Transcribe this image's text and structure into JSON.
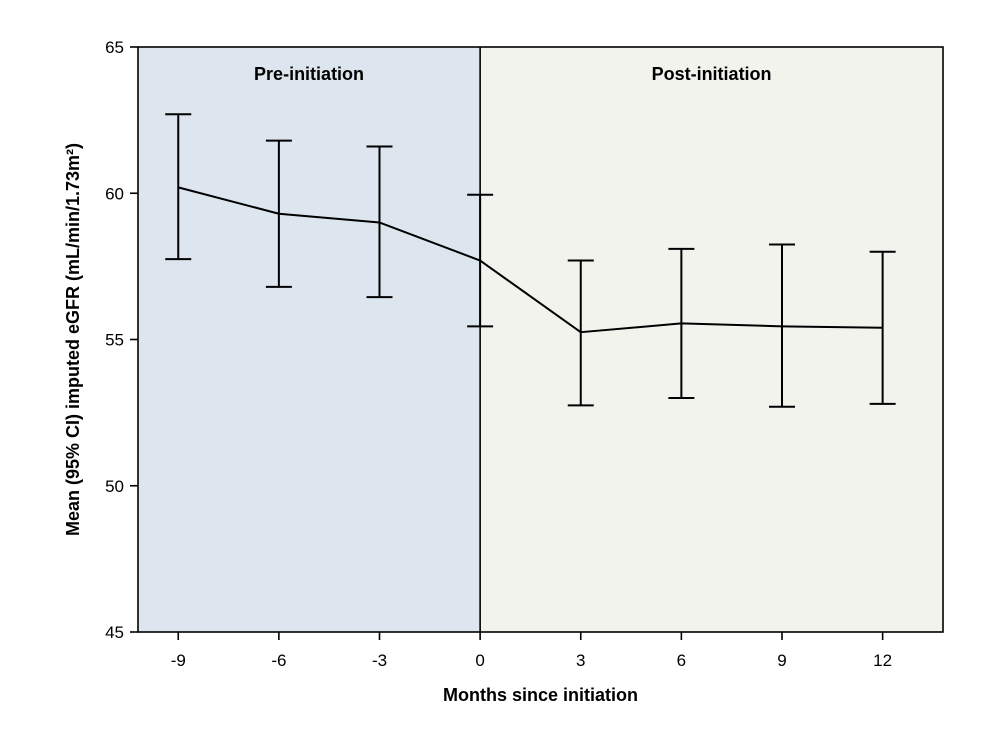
{
  "chart_data": {
    "type": "line",
    "xlabel": "Months since initiation",
    "ylabel": "Mean (95% CI) imputed eGFR (mL/min/1.73m²)",
    "xlim": [
      -10.2,
      13.8
    ],
    "ylim": [
      45,
      65
    ],
    "x_ticks": [
      -9,
      -6,
      -3,
      0,
      3,
      6,
      9,
      12
    ],
    "y_ticks": [
      45,
      50,
      55,
      60,
      65
    ],
    "grid": false,
    "regions": [
      {
        "label": "Pre-initiation",
        "from": -10.2,
        "to": 0,
        "color": "#dde6ef"
      },
      {
        "label": "Post-initiation",
        "from": 0,
        "to": 13.8,
        "color": "#f3f3ee"
      }
    ],
    "divider_x": 0,
    "series": [
      {
        "x": [
          -9,
          -6,
          -3,
          0,
          3,
          6,
          9,
          12
        ],
        "y": [
          60.2,
          59.3,
          59.0,
          57.7,
          55.25,
          55.55,
          55.45,
          55.4
        ],
        "ci_low": [
          57.75,
          56.8,
          56.45,
          55.45,
          52.75,
          53.0,
          52.7,
          52.8
        ],
        "ci_high": [
          62.7,
          61.8,
          61.6,
          59.95,
          57.7,
          58.1,
          58.25,
          58.0
        ],
        "color": "#000000"
      }
    ]
  }
}
